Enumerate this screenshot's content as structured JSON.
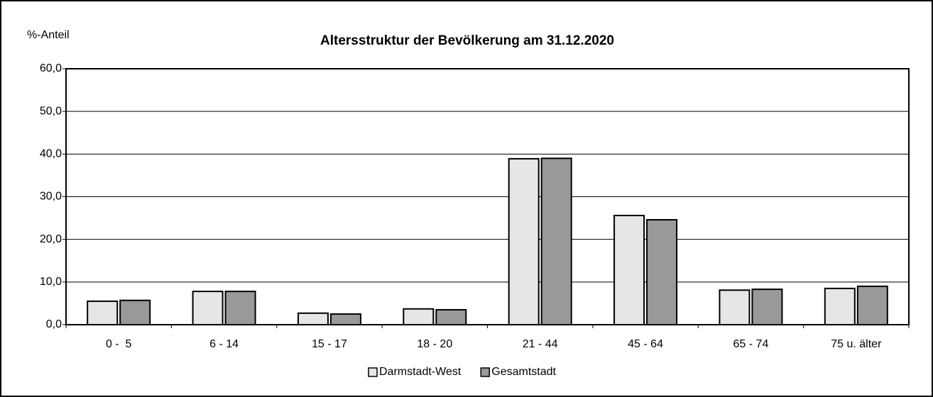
{
  "chart_data": {
    "type": "bar",
    "title": "Altersstruktur der Bevölkerung am 31.12.2020",
    "y_axis_label": "%-Anteil",
    "categories": [
      "0 -  5",
      "6 - 14",
      "15 - 17",
      "18 - 20",
      "21 - 44",
      "45 - 64",
      "65 - 74",
      "75 u. älter"
    ],
    "series": [
      {
        "name": "Darmstadt-West",
        "color": "#e6e6e6",
        "values": [
          5.5,
          7.8,
          2.7,
          3.7,
          38.9,
          25.6,
          8.1,
          8.5
        ]
      },
      {
        "name": "Gesamtstadt",
        "color": "#999999",
        "values": [
          5.7,
          7.8,
          2.5,
          3.5,
          39.0,
          24.6,
          8.3,
          9.0
        ]
      }
    ],
    "ylim": [
      0,
      60
    ],
    "yticks": [
      {
        "value": 0,
        "label": "0,0"
      },
      {
        "value": 10,
        "label": "10,0"
      },
      {
        "value": 20,
        "label": "20,0"
      },
      {
        "value": 30,
        "label": "30,0"
      },
      {
        "value": 40,
        "label": "40,0"
      },
      {
        "value": 50,
        "label": "50,0"
      },
      {
        "value": 60,
        "label": "60,0"
      }
    ],
    "grid": true,
    "legend": "bottom"
  }
}
